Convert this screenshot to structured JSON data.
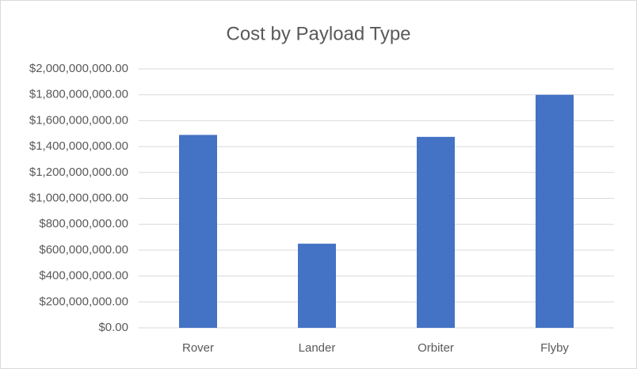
{
  "chart_data": {
    "type": "bar",
    "title": "Cost by Payload Type",
    "categories": [
      "Rover",
      "Lander",
      "Orbiter",
      "Flyby"
    ],
    "values": [
      1490000000,
      650000000,
      1475000000,
      1800000000
    ],
    "color": "#4472c4",
    "ylim": [
      0,
      2000000000
    ],
    "yticks": [
      {
        "value": 0,
        "label": "$0.00"
      },
      {
        "value": 200000000,
        "label": "$200,000,000.00"
      },
      {
        "value": 400000000,
        "label": "$400,000,000.00"
      },
      {
        "value": 600000000,
        "label": "$600,000,000.00"
      },
      {
        "value": 800000000,
        "label": "$800,000,000.00"
      },
      {
        "value": 1000000000,
        "label": "$1,000,000,000.00"
      },
      {
        "value": 1200000000,
        "label": "$1,200,000,000.00"
      },
      {
        "value": 1400000000,
        "label": "$1,400,000,000.00"
      },
      {
        "value": 1600000000,
        "label": "$1,600,000,000.00"
      },
      {
        "value": 1800000000,
        "label": "$1,800,000,000.00"
      },
      {
        "value": 2000000000,
        "label": "$2,000,000,000.00"
      }
    ],
    "grid": true
  }
}
